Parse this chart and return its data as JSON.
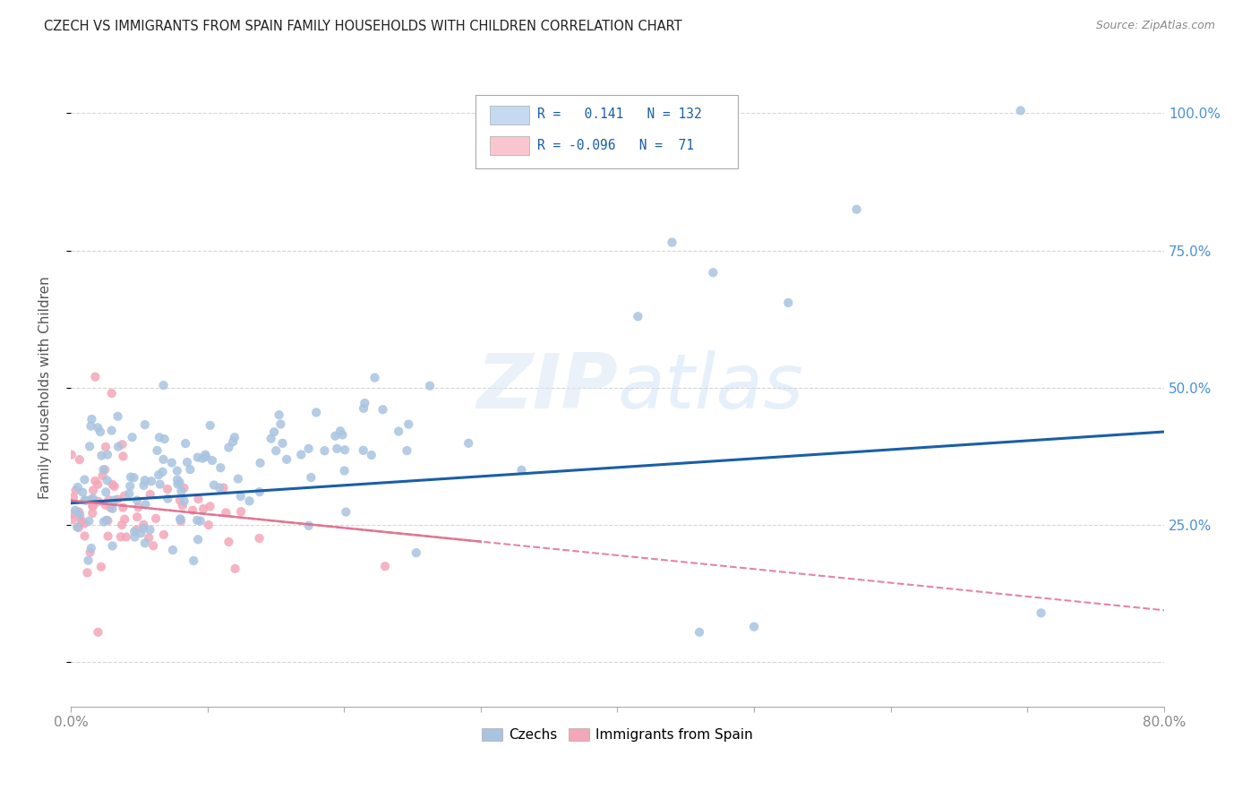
{
  "title": "CZECH VS IMMIGRANTS FROM SPAIN FAMILY HOUSEHOLDS WITH CHILDREN CORRELATION CHART",
  "source": "Source: ZipAtlas.com",
  "ylabel": "Family Households with Children",
  "ytick_labels_right": [
    "",
    "25.0%",
    "50.0%",
    "75.0%",
    "100.0%"
  ],
  "ytick_values": [
    0.0,
    0.25,
    0.5,
    0.75,
    1.0
  ],
  "xlim": [
    0.0,
    0.8
  ],
  "ylim": [
    -0.08,
    1.08
  ],
  "czech_R": 0.141,
  "czech_N": 132,
  "spain_R": -0.096,
  "spain_N": 71,
  "czech_color": "#a8c4e0",
  "spain_color": "#f4a7b9",
  "czech_line_color": "#1a5fa8",
  "spain_line_color": "#e07090",
  "background_color": "#ffffff",
  "grid_color": "#cccccc",
  "watermark_zip": "ZIP",
  "watermark_atlas": "atlas",
  "legend_box_color_czech": "#c5daf0",
  "legend_box_color_spain": "#f9c6d0",
  "tick_color_right": "#4a90d9",
  "tick_color_x": "#888888"
}
